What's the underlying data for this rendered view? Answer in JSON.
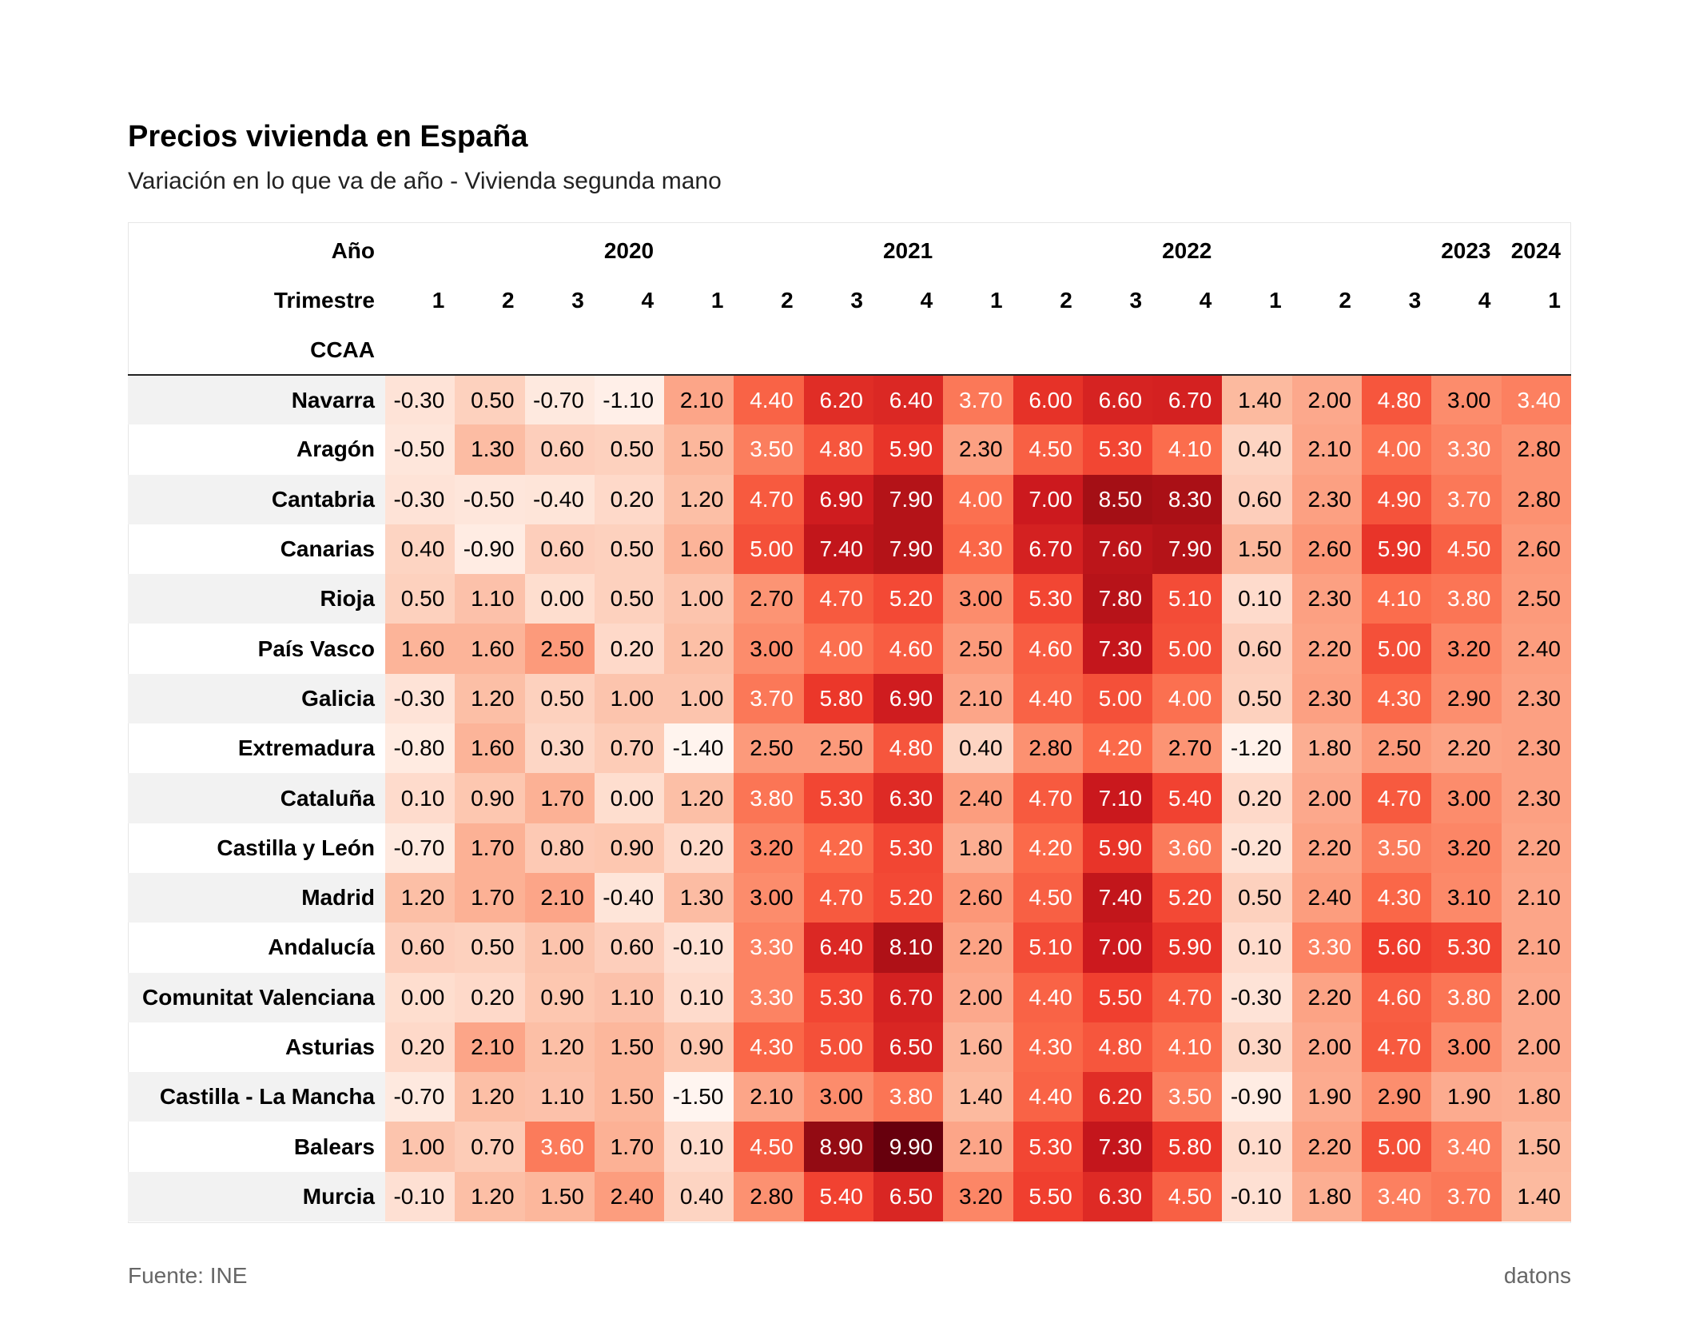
{
  "title": "Precios vivienda en España",
  "subtitle": "Variación en lo que va de año - Vivienda segunda mano",
  "source": "Fuente: INE",
  "brand": "datons",
  "colors": {
    "low": "#fff5f0",
    "high": "#67000d",
    "dark_text": "#000000",
    "light_text": "#ffffff"
  },
  "chart_data": {
    "type": "heatmap",
    "title": "Precios vivienda en España",
    "subtitle": "Variación en lo que va de año - Vivienda segunda mano",
    "header_labels": {
      "year": "Año",
      "quarter": "Trimestre",
      "region": "CCAA"
    },
    "year_groups": [
      {
        "label": "2020",
        "span": 4
      },
      {
        "label": "2021",
        "span": 4
      },
      {
        "label": "2022",
        "span": 4
      },
      {
        "label": "2023",
        "span": 4
      },
      {
        "label": "2024",
        "span": 1
      }
    ],
    "quarters": [
      "1",
      "2",
      "3",
      "4",
      "1",
      "2",
      "3",
      "4",
      "1",
      "2",
      "3",
      "4",
      "1",
      "2",
      "3",
      "4",
      "1"
    ],
    "color_range": [
      -1.5,
      9.9
    ],
    "rows": [
      {
        "region": "Navarra",
        "values": [
          -0.3,
          0.5,
          -0.7,
          -1.1,
          2.1,
          4.4,
          6.2,
          6.4,
          3.7,
          6.0,
          6.6,
          6.7,
          1.4,
          2.0,
          4.8,
          3.0,
          3.4
        ]
      },
      {
        "region": "Aragón",
        "values": [
          -0.5,
          1.3,
          0.6,
          0.5,
          1.5,
          3.5,
          4.8,
          5.9,
          2.3,
          4.5,
          5.3,
          4.1,
          0.4,
          2.1,
          4.0,
          3.3,
          2.8
        ]
      },
      {
        "region": "Cantabria",
        "values": [
          -0.3,
          -0.5,
          -0.4,
          0.2,
          1.2,
          4.7,
          6.9,
          7.9,
          4.0,
          7.0,
          8.5,
          8.3,
          0.6,
          2.3,
          4.9,
          3.7,
          2.8
        ]
      },
      {
        "region": "Canarias",
        "values": [
          0.4,
          -0.9,
          0.6,
          0.5,
          1.6,
          5.0,
          7.4,
          7.9,
          4.3,
          6.7,
          7.6,
          7.9,
          1.5,
          2.6,
          5.9,
          4.5,
          2.6
        ]
      },
      {
        "region": "Rioja",
        "values": [
          0.5,
          1.1,
          0.0,
          0.5,
          1.0,
          2.7,
          4.7,
          5.2,
          3.0,
          5.3,
          7.8,
          5.1,
          0.1,
          2.3,
          4.1,
          3.8,
          2.5
        ]
      },
      {
        "region": "País Vasco",
        "values": [
          1.6,
          1.6,
          2.5,
          0.2,
          1.2,
          3.0,
          4.0,
          4.6,
          2.5,
          4.6,
          7.3,
          5.0,
          0.6,
          2.2,
          5.0,
          3.2,
          2.4
        ]
      },
      {
        "region": "Galicia",
        "values": [
          -0.3,
          1.2,
          0.5,
          1.0,
          1.0,
          3.7,
          5.8,
          6.9,
          2.1,
          4.4,
          5.0,
          4.0,
          0.5,
          2.3,
          4.3,
          2.9,
          2.3
        ]
      },
      {
        "region": "Extremadura",
        "values": [
          -0.8,
          1.6,
          0.3,
          0.7,
          -1.4,
          2.5,
          2.5,
          4.8,
          0.4,
          2.8,
          4.2,
          2.7,
          -1.2,
          1.8,
          2.5,
          2.2,
          2.3
        ]
      },
      {
        "region": "Cataluña",
        "values": [
          0.1,
          0.9,
          1.7,
          0.0,
          1.2,
          3.8,
          5.3,
          6.3,
          2.4,
          4.7,
          7.1,
          5.4,
          0.2,
          2.0,
          4.7,
          3.0,
          2.3
        ]
      },
      {
        "region": "Castilla y León",
        "values": [
          -0.7,
          1.7,
          0.8,
          0.9,
          0.2,
          3.2,
          4.2,
          5.3,
          1.8,
          4.2,
          5.9,
          3.6,
          -0.2,
          2.2,
          3.5,
          3.2,
          2.2
        ]
      },
      {
        "region": "Madrid",
        "values": [
          1.2,
          1.7,
          2.1,
          -0.4,
          1.3,
          3.0,
          4.7,
          5.2,
          2.6,
          4.5,
          7.4,
          5.2,
          0.5,
          2.4,
          4.3,
          3.1,
          2.1
        ]
      },
      {
        "region": "Andalucía",
        "values": [
          0.6,
          0.5,
          1.0,
          0.6,
          -0.1,
          3.3,
          6.4,
          8.1,
          2.2,
          5.1,
          7.0,
          5.9,
          0.1,
          3.3,
          5.6,
          5.3,
          2.1
        ]
      },
      {
        "region": "Comunitat Valenciana",
        "values": [
          0.0,
          0.2,
          0.9,
          1.1,
          0.1,
          3.3,
          5.3,
          6.7,
          2.0,
          4.4,
          5.5,
          4.7,
          -0.3,
          2.2,
          4.6,
          3.8,
          2.0
        ]
      },
      {
        "region": "Asturias",
        "values": [
          0.2,
          2.1,
          1.2,
          1.5,
          0.9,
          4.3,
          5.0,
          6.5,
          1.6,
          4.3,
          4.8,
          4.1,
          0.3,
          2.0,
          4.7,
          3.0,
          2.0
        ]
      },
      {
        "region": "Castilla - La Mancha",
        "values": [
          -0.7,
          1.2,
          1.1,
          1.5,
          -1.5,
          2.1,
          3.0,
          3.8,
          1.4,
          4.4,
          6.2,
          3.5,
          -0.9,
          1.9,
          2.9,
          1.9,
          1.8
        ]
      },
      {
        "region": "Balears",
        "values": [
          1.0,
          0.7,
          3.6,
          1.7,
          0.1,
          4.5,
          8.9,
          9.9,
          2.1,
          5.3,
          7.3,
          5.8,
          0.1,
          2.2,
          5.0,
          3.4,
          1.5
        ]
      },
      {
        "region": "Murcia",
        "values": [
          -0.1,
          1.2,
          1.5,
          2.4,
          0.4,
          2.8,
          5.4,
          6.5,
          3.2,
          5.5,
          6.3,
          4.5,
          -0.1,
          1.8,
          3.4,
          3.7,
          1.4
        ]
      }
    ]
  }
}
